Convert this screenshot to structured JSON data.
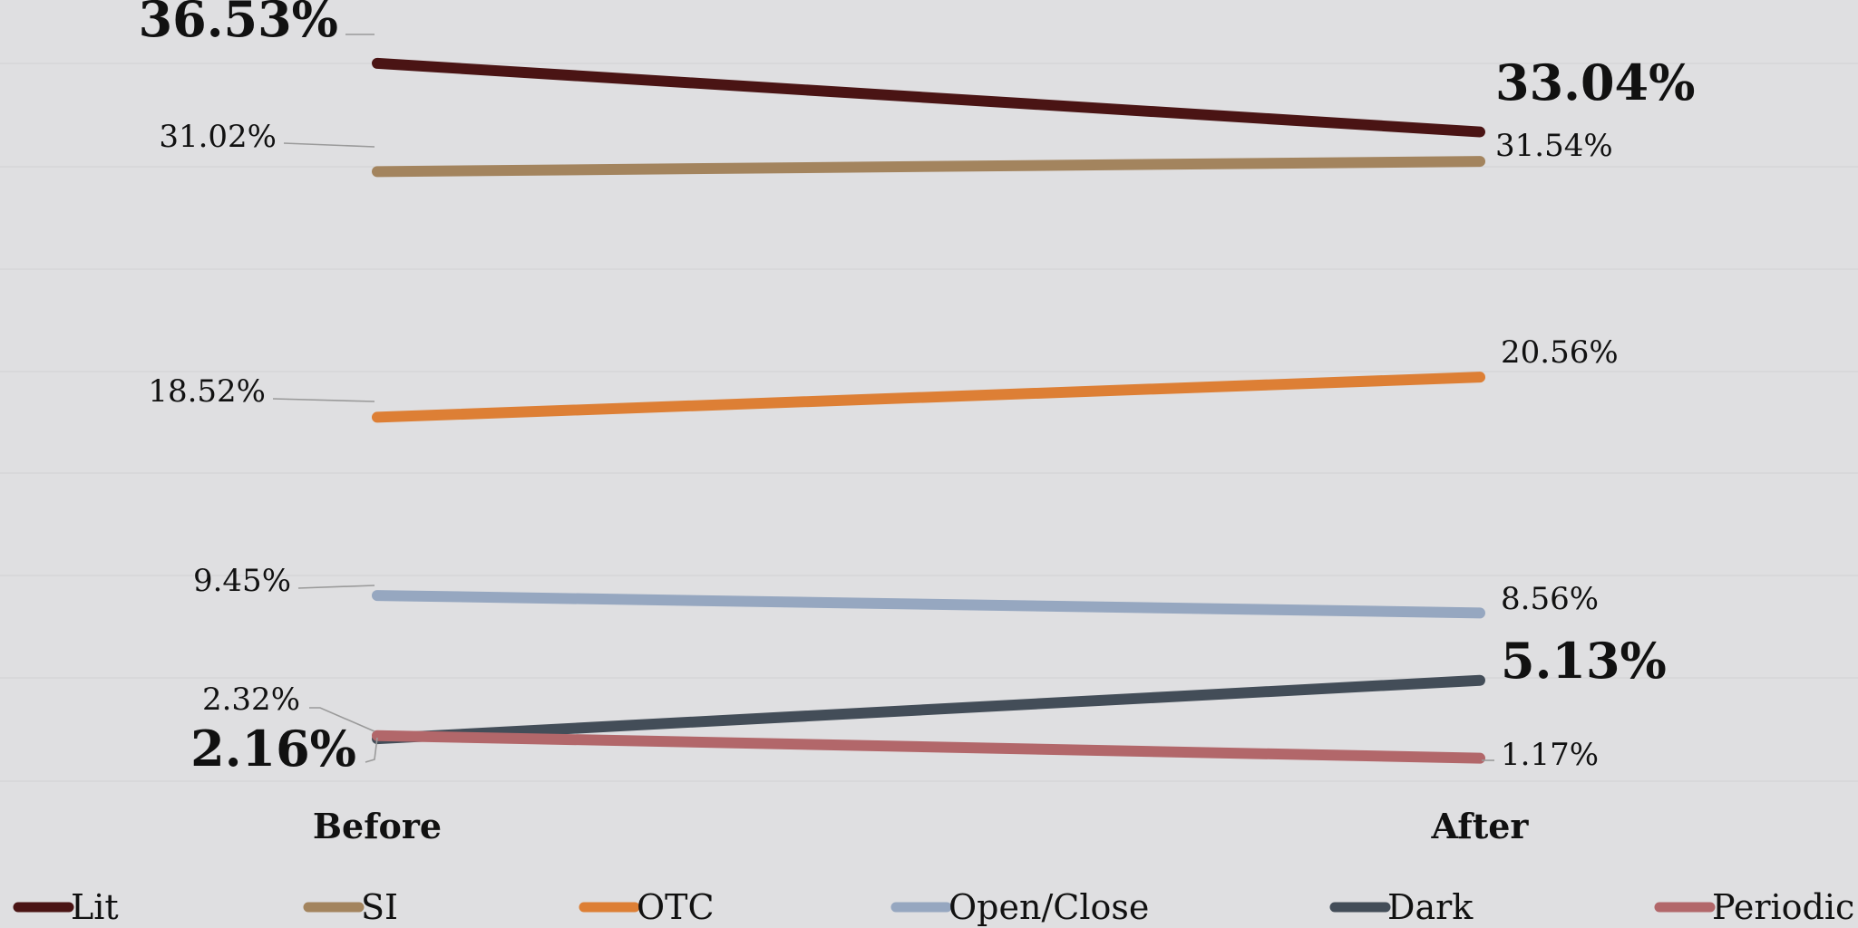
{
  "chart_data": {
    "type": "line",
    "categories": [
      "Before",
      "After"
    ],
    "ylim": [
      0,
      38
    ],
    "grid": true,
    "legend_position": "bottom",
    "series": [
      {
        "name": "Lit",
        "values": [
          36.53,
          33.04
        ],
        "labels": [
          "36.53%",
          "33.04%"
        ],
        "emphasis": [
          "bold",
          "bold"
        ],
        "color": "#4a1414"
      },
      {
        "name": "SI",
        "values": [
          31.02,
          31.54
        ],
        "labels": [
          "31.02%",
          "31.54%"
        ],
        "emphasis": [
          "normal",
          "normal"
        ],
        "color": "#a3845e"
      },
      {
        "name": "OTC",
        "values": [
          18.52,
          20.56
        ],
        "labels": [
          "18.52%",
          "20.56%"
        ],
        "emphasis": [
          "normal",
          "normal"
        ],
        "color": "#dd7f35"
      },
      {
        "name": "Open/Close",
        "values": [
          9.45,
          8.56
        ],
        "labels": [
          "9.45%",
          "8.56%"
        ],
        "emphasis": [
          "normal",
          "normal"
        ],
        "color": "#96a7c0"
      },
      {
        "name": "Dark",
        "values": [
          2.16,
          5.13
        ],
        "labels": [
          "2.16%",
          "5.13%"
        ],
        "emphasis": [
          "bold",
          "bold"
        ],
        "color": "#434d58"
      },
      {
        "name": "Periodic",
        "values": [
          2.32,
          1.17
        ],
        "labels": [
          "2.32%",
          "1.17%"
        ],
        "emphasis": [
          "normal",
          "normal"
        ],
        "color": "#b2676a"
      }
    ]
  }
}
